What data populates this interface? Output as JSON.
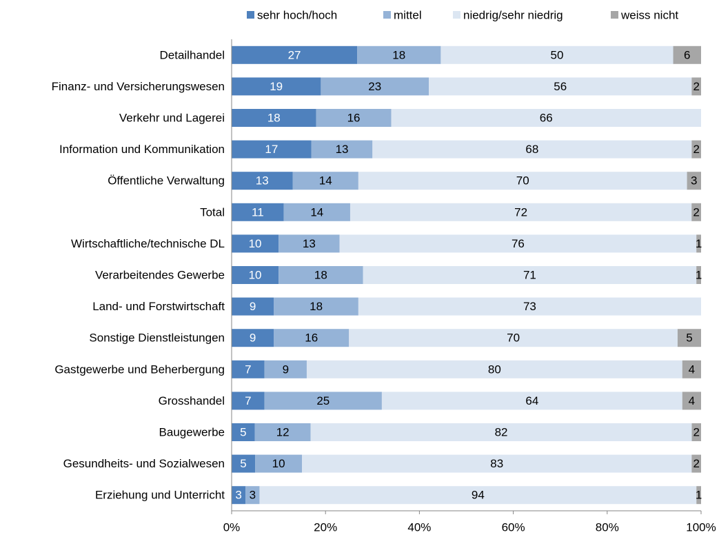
{
  "chart_data": {
    "type": "bar",
    "orientation": "horizontal",
    "stacking": "percent",
    "categories": [
      "Detailhandel",
      "Finanz- und Versicherungswesen",
      "Verkehr und Lagerei",
      "Information und Kommunikation",
      "Öffentliche Verwaltung",
      "Total",
      "Wirtschaftliche/technische DL",
      "Verarbeitendes Gewerbe",
      "Land- und Forstwirtschaft",
      "Sonstige Dienstleistungen",
      "Gastgewerbe und Beherbergung",
      "Grosshandel",
      "Baugewerbe",
      "Gesundheits- und Sozialwesen",
      "Erziehung und Unterricht"
    ],
    "series": [
      {
        "name": "sehr hoch/hoch",
        "color": "#4f81bd",
        "label_color": "#ffffff",
        "values": [
          27,
          19,
          18,
          17,
          13,
          11,
          10,
          10,
          9,
          9,
          7,
          7,
          5,
          5,
          3
        ]
      },
      {
        "name": "mittel",
        "color": "#95b3d7",
        "label_color": "#000000",
        "values": [
          18,
          23,
          16,
          13,
          14,
          14,
          13,
          18,
          18,
          16,
          9,
          25,
          12,
          10,
          3
        ]
      },
      {
        "name": "niedrig/sehr niedrig",
        "color": "#dce6f2",
        "label_color": "#000000",
        "values": [
          50,
          56,
          66,
          68,
          70,
          72,
          76,
          71,
          73,
          70,
          80,
          64,
          82,
          83,
          94
        ]
      },
      {
        "name": "weiss nicht",
        "color": "#a6a6a6",
        "label_color": "#000000",
        "values": [
          6,
          2,
          null,
          2,
          3,
          2,
          1,
          1,
          null,
          5,
          4,
          4,
          2,
          2,
          1
        ]
      }
    ],
    "xlim": [
      0,
      100
    ],
    "xticks": [
      {
        "value": 0,
        "label": "0%"
      },
      {
        "value": 20,
        "label": "20%"
      },
      {
        "value": 40,
        "label": "40%"
      },
      {
        "value": 60,
        "label": "60%"
      },
      {
        "value": 80,
        "label": "80%"
      },
      {
        "value": 100,
        "label": "100%"
      }
    ],
    "legend": "top"
  }
}
